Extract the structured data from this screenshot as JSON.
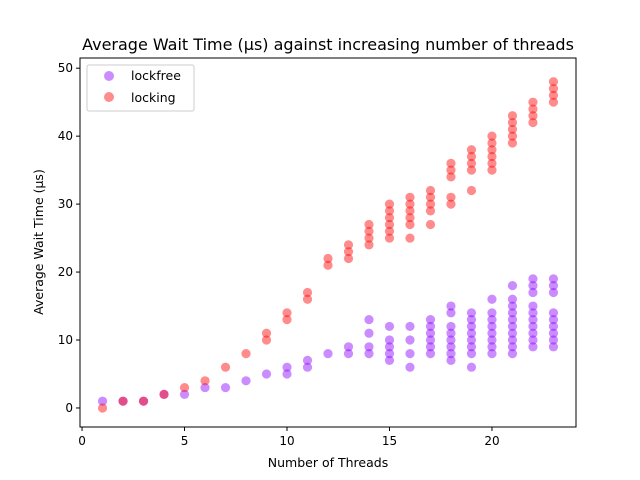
{
  "chart_data": {
    "type": "scatter",
    "title": "Average Wait Time (µs) against increasing number of threads",
    "xlabel": "Number of Threads",
    "ylabel": "Average Wait Time (µs)",
    "xlim": [
      -0.1,
      24.1
    ],
    "ylim": [
      -2.8,
      51.5
    ],
    "xticks": [
      0,
      5,
      10,
      15,
      20
    ],
    "yticks": [
      0,
      10,
      20,
      30,
      40,
      50
    ],
    "grid": false,
    "legend_position": "upper-left",
    "series": [
      {
        "name": "lockfree",
        "color": "#8a00ff",
        "points": [
          [
            1,
            1
          ],
          [
            2,
            1
          ],
          [
            3,
            1
          ],
          [
            4,
            2
          ],
          [
            5,
            2
          ],
          [
            6,
            3
          ],
          [
            7,
            3
          ],
          [
            8,
            4
          ],
          [
            9,
            5
          ],
          [
            10,
            5
          ],
          [
            10,
            6
          ],
          [
            11,
            6
          ],
          [
            11,
            7
          ],
          [
            12,
            8
          ],
          [
            13,
            8
          ],
          [
            13,
            9
          ],
          [
            14,
            8
          ],
          [
            14,
            9
          ],
          [
            14,
            11
          ],
          [
            14,
            13
          ],
          [
            15,
            7
          ],
          [
            15,
            8
          ],
          [
            15,
            9
          ],
          [
            15,
            10
          ],
          [
            15,
            12
          ],
          [
            16,
            6
          ],
          [
            16,
            8
          ],
          [
            16,
            10
          ],
          [
            16,
            12
          ],
          [
            17,
            8
          ],
          [
            17,
            9
          ],
          [
            17,
            10
          ],
          [
            17,
            11
          ],
          [
            17,
            12
          ],
          [
            17,
            13
          ],
          [
            18,
            7
          ],
          [
            18,
            8
          ],
          [
            18,
            9
          ],
          [
            18,
            10
          ],
          [
            18,
            11
          ],
          [
            18,
            12
          ],
          [
            18,
            14
          ],
          [
            18,
            15
          ],
          [
            19,
            6
          ],
          [
            19,
            8
          ],
          [
            19,
            9
          ],
          [
            19,
            10
          ],
          [
            19,
            11
          ],
          [
            19,
            12
          ],
          [
            19,
            13
          ],
          [
            19,
            14
          ],
          [
            20,
            8
          ],
          [
            20,
            9
          ],
          [
            20,
            10
          ],
          [
            20,
            11
          ],
          [
            20,
            12
          ],
          [
            20,
            13
          ],
          [
            20,
            14
          ],
          [
            20,
            16
          ],
          [
            21,
            8
          ],
          [
            21,
            9
          ],
          [
            21,
            10
          ],
          [
            21,
            11
          ],
          [
            21,
            12
          ],
          [
            21,
            13
          ],
          [
            21,
            14
          ],
          [
            21,
            15
          ],
          [
            21,
            16
          ],
          [
            21,
            18
          ],
          [
            22,
            9
          ],
          [
            22,
            10
          ],
          [
            22,
            11
          ],
          [
            22,
            12
          ],
          [
            22,
            13
          ],
          [
            22,
            14
          ],
          [
            22,
            15
          ],
          [
            22,
            17
          ],
          [
            22,
            18
          ],
          [
            22,
            19
          ],
          [
            23,
            9
          ],
          [
            23,
            10
          ],
          [
            23,
            11
          ],
          [
            23,
            12
          ],
          [
            23,
            13
          ],
          [
            23,
            14
          ],
          [
            23,
            17
          ],
          [
            23,
            18
          ],
          [
            23,
            19
          ]
        ]
      },
      {
        "name": "locking",
        "color": "#ff0000",
        "points": [
          [
            1,
            0
          ],
          [
            2,
            1
          ],
          [
            3,
            1
          ],
          [
            4,
            2
          ],
          [
            5,
            3
          ],
          [
            6,
            4
          ],
          [
            7,
            6
          ],
          [
            8,
            8
          ],
          [
            9,
            10
          ],
          [
            9,
            11
          ],
          [
            10,
            13
          ],
          [
            10,
            14
          ],
          [
            11,
            16
          ],
          [
            11,
            17
          ],
          [
            12,
            21
          ],
          [
            12,
            22
          ],
          [
            13,
            22
          ],
          [
            13,
            23
          ],
          [
            13,
            24
          ],
          [
            14,
            24
          ],
          [
            14,
            25
          ],
          [
            14,
            26
          ],
          [
            14,
            27
          ],
          [
            15,
            25
          ],
          [
            15,
            26
          ],
          [
            15,
            27
          ],
          [
            15,
            28
          ],
          [
            15,
            29
          ],
          [
            15,
            30
          ],
          [
            16,
            25
          ],
          [
            16,
            27
          ],
          [
            16,
            28
          ],
          [
            16,
            29
          ],
          [
            16,
            30
          ],
          [
            16,
            31
          ],
          [
            17,
            27
          ],
          [
            17,
            29
          ],
          [
            17,
            30
          ],
          [
            17,
            31
          ],
          [
            17,
            32
          ],
          [
            18,
            30
          ],
          [
            18,
            31
          ],
          [
            18,
            34
          ],
          [
            18,
            35
          ],
          [
            18,
            36
          ],
          [
            19,
            32
          ],
          [
            19,
            35
          ],
          [
            19,
            36
          ],
          [
            19,
            37
          ],
          [
            19,
            38
          ],
          [
            20,
            35
          ],
          [
            20,
            36
          ],
          [
            20,
            37
          ],
          [
            20,
            38
          ],
          [
            20,
            39
          ],
          [
            20,
            40
          ],
          [
            21,
            39
          ],
          [
            21,
            40
          ],
          [
            21,
            41
          ],
          [
            21,
            42
          ],
          [
            21,
            43
          ],
          [
            22,
            42
          ],
          [
            22,
            43
          ],
          [
            22,
            44
          ],
          [
            22,
            45
          ],
          [
            23,
            45
          ],
          [
            23,
            46
          ],
          [
            23,
            47
          ],
          [
            23,
            48
          ]
        ]
      }
    ]
  }
}
